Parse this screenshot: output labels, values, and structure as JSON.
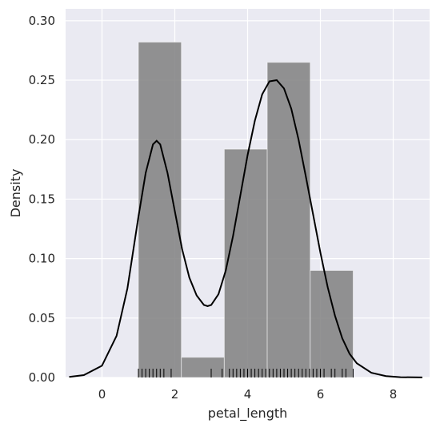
{
  "chart_data": {
    "type": "bar",
    "subtype": "histogram-with-kde-and-rug",
    "title": "",
    "xlabel": "petal_length",
    "ylabel": "Density",
    "xlim": [
      -1.0,
      9.0
    ],
    "ylim": [
      0.0,
      0.31
    ],
    "x_ticks": [
      0,
      2,
      4,
      6,
      8
    ],
    "y_ticks": [
      0.0,
      0.05,
      0.1,
      0.15,
      0.2,
      0.25,
      0.3
    ],
    "y_tick_labels": [
      "0.00",
      "0.05",
      "0.10",
      "0.15",
      "0.20",
      "0.25",
      "0.30"
    ],
    "grid": true,
    "bins": [
      {
        "x0": 1.0,
        "x1": 2.18,
        "value": 0.282
      },
      {
        "x0": 2.18,
        "x1": 3.36,
        "value": 0.017
      },
      {
        "x0": 3.36,
        "x1": 4.54,
        "value": 0.192
      },
      {
        "x0": 4.54,
        "x1": 5.72,
        "value": 0.265
      },
      {
        "x0": 5.72,
        "x1": 6.9,
        "value": 0.09
      }
    ],
    "kde": {
      "x": [
        -0.9,
        -0.5,
        0.0,
        0.4,
        0.7,
        1.0,
        1.2,
        1.4,
        1.5,
        1.6,
        1.8,
        2.0,
        2.2,
        2.4,
        2.6,
        2.8,
        2.9,
        3.0,
        3.2,
        3.4,
        3.6,
        3.8,
        4.0,
        4.2,
        4.4,
        4.6,
        4.8,
        5.0,
        5.2,
        5.4,
        5.6,
        5.8,
        6.0,
        6.2,
        6.4,
        6.6,
        6.8,
        7.0,
        7.4,
        7.8,
        8.2,
        8.8
      ],
      "y": [
        0.0005,
        0.002,
        0.01,
        0.035,
        0.075,
        0.135,
        0.172,
        0.196,
        0.199,
        0.196,
        0.172,
        0.14,
        0.108,
        0.084,
        0.069,
        0.061,
        0.06,
        0.061,
        0.07,
        0.09,
        0.119,
        0.153,
        0.187,
        0.216,
        0.238,
        0.249,
        0.25,
        0.243,
        0.226,
        0.2,
        0.169,
        0.137,
        0.105,
        0.076,
        0.052,
        0.033,
        0.02,
        0.012,
        0.004,
        0.0012,
        0.0003,
        5e-05
      ]
    },
    "rug": [
      1.0,
      1.1,
      1.2,
      1.3,
      1.4,
      1.5,
      1.6,
      1.7,
      1.9,
      3.0,
      3.3,
      3.5,
      3.6,
      3.7,
      3.8,
      3.9,
      4.0,
      4.1,
      4.2,
      4.3,
      4.4,
      4.5,
      4.6,
      4.7,
      4.8,
      4.9,
      5.0,
      5.1,
      5.2,
      5.3,
      5.4,
      5.5,
      5.6,
      5.7,
      5.8,
      5.9,
      6.0,
      6.1,
      6.3,
      6.4,
      6.6,
      6.7,
      6.9
    ],
    "colors": {
      "bar": "#808080",
      "kde": "#000000",
      "rug": "#000000",
      "background": "#eaeaf2",
      "grid": "#ffffff"
    }
  }
}
